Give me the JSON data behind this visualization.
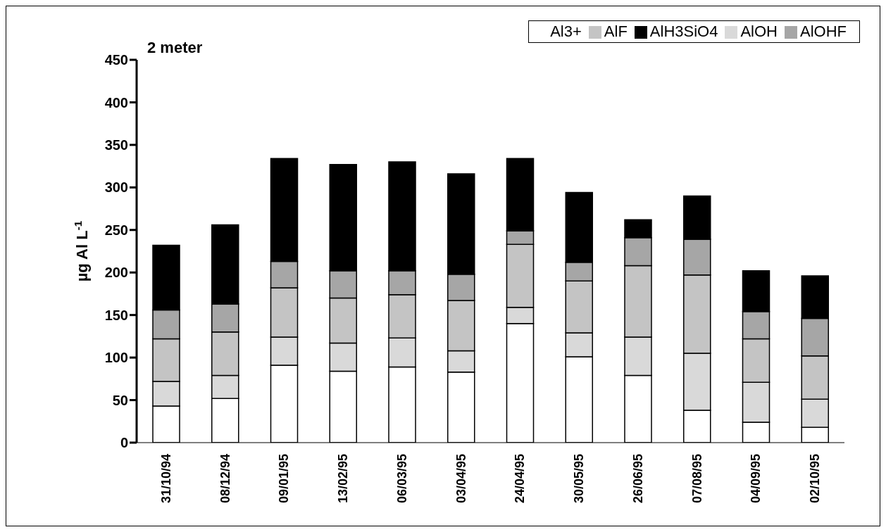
{
  "chart_data": {
    "type": "bar",
    "stacked": true,
    "ylabel": "µg Al L$^{-1}$",
    "annotations": [
      "2 meter"
    ],
    "categories": [
      "31/10/94",
      "08/12/94",
      "09/01/95",
      "13/02/95",
      "06/03/95",
      "03/04/95",
      "24/04/95",
      "30/05/95",
      "26/06/95",
      "07/08/95",
      "04/09/95",
      "02/10/95"
    ],
    "series": [
      {
        "name": "Al3+",
        "color": "#ffffff",
        "values": [
          43,
          52,
          91,
          84,
          89,
          83,
          140,
          101,
          79,
          38,
          24,
          18
        ]
      },
      {
        "name": "AlOH",
        "color": "#d9d9d9",
        "values": [
          29,
          27,
          33,
          33,
          34,
          25,
          19,
          28,
          45,
          67,
          47,
          33
        ]
      },
      {
        "name": "AlF",
        "color": "#c4c4c4",
        "values": [
          50,
          51,
          58,
          53,
          51,
          59,
          74,
          61,
          84,
          92,
          51,
          51
        ]
      },
      {
        "name": "AlOHF",
        "color": "#a6a6a6",
        "values": [
          34,
          33,
          31,
          32,
          28,
          31,
          16,
          22,
          33,
          42,
          32,
          44
        ]
      },
      {
        "name": "AlH3SiO4",
        "color": "#000000",
        "values": [
          76,
          93,
          121,
          125,
          128,
          118,
          85,
          82,
          21,
          51,
          48,
          50
        ]
      }
    ],
    "ylim": [
      0,
      450
    ],
    "yticks": [
      0,
      50,
      100,
      150,
      200,
      250,
      300,
      350,
      400,
      450
    ],
    "grid": false,
    "legend": "top right"
  }
}
